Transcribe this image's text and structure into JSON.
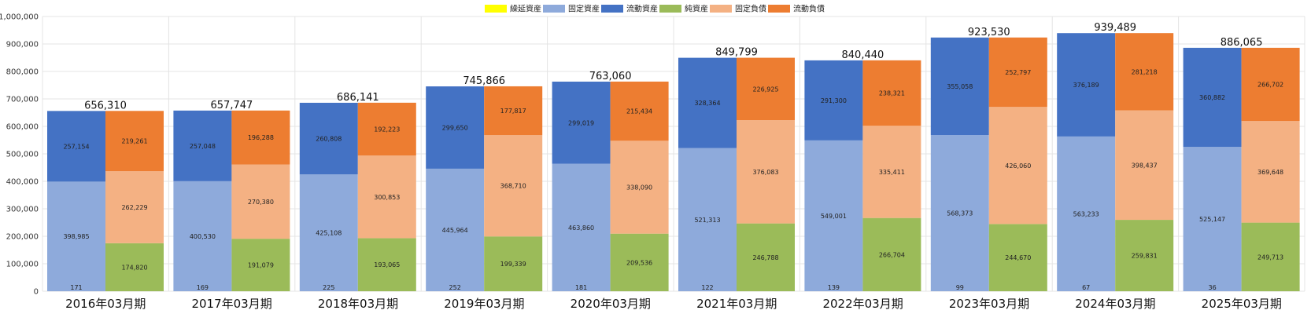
{
  "chart_data": {
    "type": "bar",
    "subtype": "stacked-grouped",
    "title": "",
    "xlabel": "",
    "ylabel": "",
    "ylim": [
      0,
      1000000
    ],
    "y_ticks": [
      0,
      100000,
      200000,
      300000,
      400000,
      500000,
      600000,
      700000,
      800000,
      900000,
      1000000
    ],
    "y_tick_labels": [
      "0",
      "100,000",
      "200,000",
      "300,000",
      "400,000",
      "500,000",
      "600,000",
      "700,000",
      "800,000",
      "900,000",
      "1,000,000"
    ],
    "grid": true,
    "legend_position": "top-center",
    "categories": [
      "2016年03月期",
      "2017年03月期",
      "2018年03月期",
      "2019年03月期",
      "2020年03月期",
      "2021年03月期",
      "2022年03月期",
      "2023年03月期",
      "2024年03月期",
      "2025年03月期"
    ],
    "totals": [
      656310,
      657747,
      686141,
      745866,
      763060,
      849799,
      840440,
      923530,
      939489,
      886065
    ],
    "total_labels": [
      "656,310",
      "657,747",
      "686,141",
      "745,866",
      "763,060",
      "849,799",
      "840,440",
      "923,530",
      "939,489",
      "886,065"
    ],
    "legend": [
      {
        "name": "繰延資産",
        "color": "#ffff00"
      },
      {
        "name": "固定資産",
        "color": "#8eaadb"
      },
      {
        "name": "流動資産",
        "color": "#4472c4"
      },
      {
        "name": "純資産",
        "color": "#9bbb59"
      },
      {
        "name": "固定負債",
        "color": "#f4b183"
      },
      {
        "name": "流動負債",
        "color": "#ed7d31"
      }
    ],
    "series": [
      {
        "name": "繰延資産",
        "stack": "assets",
        "color": "#ffff00",
        "values": [
          0,
          0,
          0,
          0,
          0,
          0,
          0,
          0,
          0,
          0
        ]
      },
      {
        "name": "固定資産",
        "stack": "assets",
        "color": "#8eaadb",
        "values": [
          398985,
          400530,
          425108,
          445964,
          463860,
          521313,
          549001,
          568373,
          563233,
          525147
        ]
      },
      {
        "name": "流動資産",
        "stack": "assets",
        "color": "#4472c4",
        "values": [
          257154,
          257048,
          260808,
          299650,
          299019,
          328364,
          291300,
          355058,
          376189,
          360882
        ]
      },
      {
        "name": "純資産",
        "stack": "liabilities",
        "color": "#9bbb59",
        "values": [
          174820,
          191079,
          193065,
          199339,
          209536,
          246788,
          266704,
          244670,
          259831,
          249713
        ]
      },
      {
        "name": "固定負債",
        "stack": "liabilities",
        "color": "#f4b183",
        "values": [
          262229,
          270380,
          300853,
          368710,
          338090,
          376083,
          335411,
          426060,
          398437,
          369648
        ]
      },
      {
        "name": "流動負債",
        "stack": "liabilities",
        "color": "#ed7d31",
        "values": [
          219261,
          196288,
          192223,
          177817,
          215434,
          226925,
          238321,
          252797,
          281218,
          266702
        ]
      }
    ],
    "bottom_labels": {
      "series": "固定資産",
      "values": [
        171,
        169,
        225,
        252,
        181,
        122,
        139,
        99,
        67,
        36
      ],
      "labels": [
        "171",
        "169",
        "225",
        "252",
        "181",
        "122",
        "139",
        "99",
        "67",
        "36"
      ]
    },
    "segment_labels": {
      "固定資産": [
        "398,985",
        "400,530",
        "425,108",
        "445,964",
        "463,860",
        "521,313",
        "549,001",
        "568,373",
        "563,233",
        "525,147"
      ],
      "流動資産": [
        "257,154",
        "257,048",
        "260,808",
        "299,650",
        "299,019",
        "328,364",
        "291,300",
        "355,058",
        "376,189",
        "360,882"
      ],
      "純資産": [
        "174,820",
        "191,079",
        "193,065",
        "199,339",
        "209,536",
        "246,788",
        "266,704",
        "244,670",
        "259,831",
        "249,713"
      ],
      "固定負債": [
        "262,229",
        "270,380",
        "300,853",
        "368,710",
        "338,090",
        "376,083",
        "335,411",
        "426,060",
        "398,437",
        "369,648"
      ],
      "流動負債": [
        "219,261",
        "196,288",
        "192,223",
        "177,817",
        "215,434",
        "226,925",
        "238,321",
        "252,797",
        "281,218",
        "266,702"
      ]
    }
  }
}
